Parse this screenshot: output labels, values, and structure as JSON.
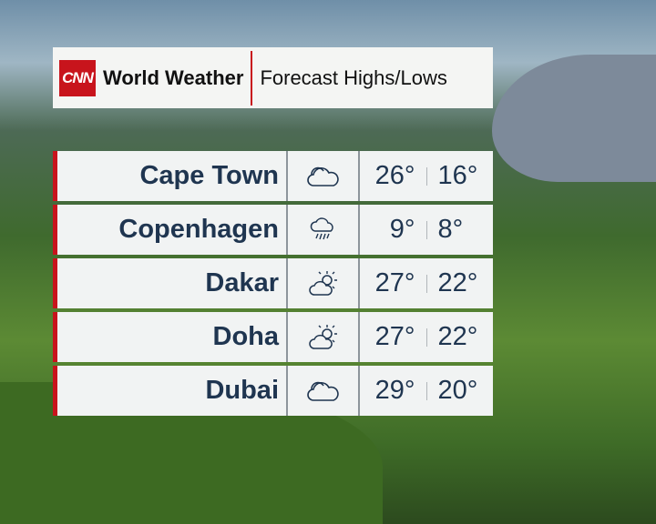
{
  "header": {
    "logo": "CNN",
    "title": "World Weather",
    "subtitle": "Forecast Highs/Lows"
  },
  "colors": {
    "accent": "#c8141c",
    "text": "#1f3550"
  },
  "rows": [
    {
      "city": "Cape Town",
      "icon": "cloud-icon",
      "high": "26°",
      "low": "16°"
    },
    {
      "city": "Copenhagen",
      "icon": "rain-cloud-icon",
      "high": "9°",
      "low": "8°"
    },
    {
      "city": "Dakar",
      "icon": "partly-sunny-icon",
      "high": "27°",
      "low": "22°"
    },
    {
      "city": "Doha",
      "icon": "partly-sunny-icon",
      "high": "27°",
      "low": "22°"
    },
    {
      "city": "Dubai",
      "icon": "cloud-icon",
      "high": "29°",
      "low": "20°"
    }
  ]
}
